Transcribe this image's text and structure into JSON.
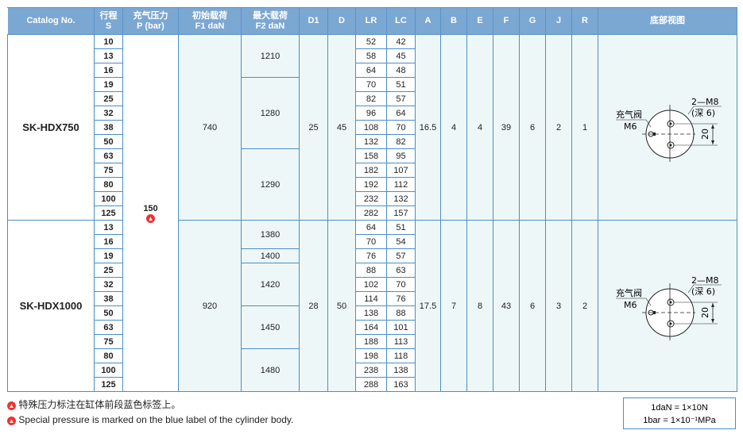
{
  "headers": [
    [
      "Catalog No."
    ],
    [
      "行程",
      "S"
    ],
    [
      "充气压力",
      "P (bar)"
    ],
    [
      "初始载荷",
      "F1 daN"
    ],
    [
      "最大载荷",
      "F2 daN"
    ],
    [
      "D1"
    ],
    [
      "D"
    ],
    [
      "LR"
    ],
    [
      "LC"
    ],
    [
      "A"
    ],
    [
      "B"
    ],
    [
      "E"
    ],
    [
      "F"
    ],
    [
      "G"
    ],
    [
      "J"
    ],
    [
      "R"
    ],
    [
      "底部视图"
    ]
  ],
  "pressure": "150",
  "models": [
    {
      "catalog": "SK-HDX750",
      "F1": "740",
      "D1": "25",
      "D": "45",
      "A": "16.5",
      "B": "4",
      "E": "4",
      "F": "39",
      "G": "6",
      "J": "2",
      "R": "1",
      "strokes": [
        "10",
        "13",
        "16",
        "19",
        "25",
        "32",
        "38",
        "50",
        "63",
        "75",
        "80",
        "100",
        "125"
      ],
      "LR": [
        "52",
        "58",
        "64",
        "70",
        "82",
        "96",
        "108",
        "132",
        "158",
        "182",
        "192",
        "232",
        "282"
      ],
      "LC": [
        "42",
        "45",
        "48",
        "51",
        "57",
        "64",
        "70",
        "82",
        "95",
        "107",
        "112",
        "132",
        "157"
      ],
      "F2": [
        {
          "value": "1210",
          "rows": 3
        },
        {
          "value": "1280",
          "rows": 5
        },
        {
          "value": "1290",
          "rows": 5
        }
      ]
    },
    {
      "catalog": "SK-HDX1000",
      "F1": "920",
      "D1": "28",
      "D": "50",
      "A": "17.5",
      "B": "7",
      "E": "8",
      "F": "43",
      "G": "6",
      "J": "3",
      "R": "2",
      "strokes": [
        "13",
        "16",
        "19",
        "25",
        "32",
        "38",
        "50",
        "63",
        "75",
        "80",
        "100",
        "125"
      ],
      "LR": [
        "64",
        "70",
        "76",
        "88",
        "102",
        "114",
        "138",
        "164",
        "188",
        "198",
        "238",
        "288"
      ],
      "LC": [
        "51",
        "54",
        "57",
        "63",
        "70",
        "76",
        "88",
        "101",
        "113",
        "118",
        "138",
        "163"
      ],
      "F2": [
        {
          "value": "1380",
          "rows": 2
        },
        {
          "value": "1400",
          "rows": 1
        },
        {
          "value": "1420",
          "rows": 3
        },
        {
          "value": "1450",
          "rows": 3
        },
        {
          "value": "1480",
          "rows": 3
        }
      ]
    }
  ],
  "diagram": {
    "valve_label": "充气阀",
    "valve_thread": "M6",
    "hole_label": "2—M8",
    "hole_depth": "(深 6)",
    "dimension": "20"
  },
  "notes": [
    "特殊压力标注在缸体前段蓝色标签上。",
    "Special pressure is marked on the blue label of the cylinder body."
  ],
  "units": [
    "1daN = 1×10N",
    "1bar = 1×10⁻¹MPa"
  ],
  "colors": {
    "header": "#7ba7d3",
    "border": "#4a8fc4",
    "cell": "#eef7f7",
    "warning": "#e33333"
  }
}
